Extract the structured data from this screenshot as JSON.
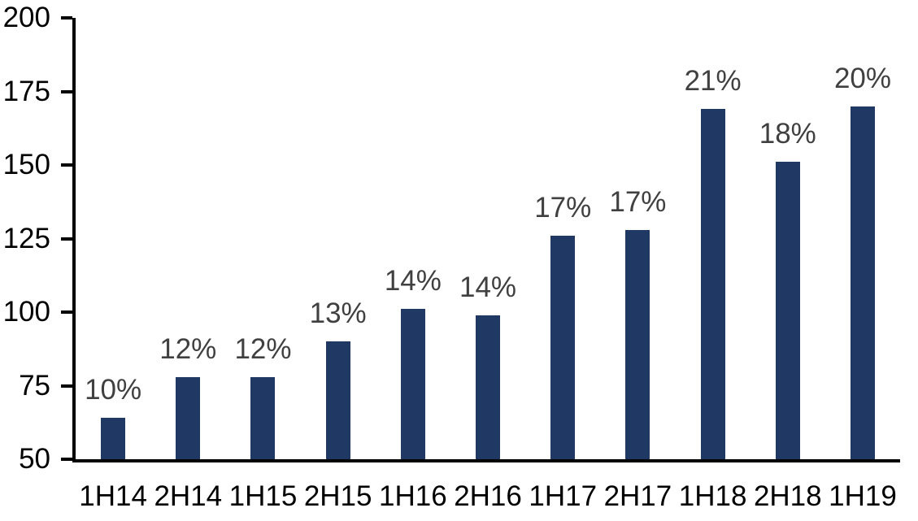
{
  "chart_data": {
    "type": "bar",
    "categories": [
      "1H14",
      "2H14",
      "1H15",
      "2H15",
      "1H16",
      "2H16",
      "1H17",
      "2H17",
      "1H18",
      "2H18",
      "1H19"
    ],
    "values": [
      64,
      78,
      78,
      90,
      101,
      99,
      126,
      128,
      169,
      151,
      170
    ],
    "bar_labels": [
      "10%",
      "12%",
      "12%",
      "13%",
      "14%",
      "14%",
      "17%",
      "17%",
      "21%",
      "18%",
      "20%"
    ],
    "title": "",
    "xlabel": "",
    "ylabel": "",
    "ylim": [
      50,
      200
    ],
    "yticks": [
      50,
      75,
      100,
      125,
      150,
      175,
      200
    ],
    "grid": false,
    "legend_position": "none",
    "colors": {
      "bar_fill": "#1F3864",
      "bar_label": "#404040",
      "axis": "#000000",
      "tick_label": "#000000",
      "background": "#ffffff"
    }
  }
}
